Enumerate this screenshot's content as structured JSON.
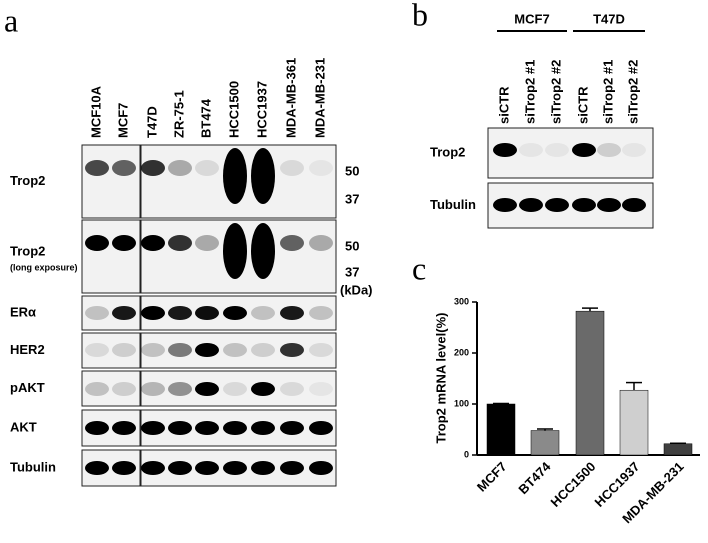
{
  "panel_a": {
    "label": "a",
    "lanes": [
      "MCF10A",
      "MCF7",
      "T47D",
      "ZR-75-1",
      "BT474",
      "HCC1500",
      "HCC1937",
      "MDA-MB-361",
      "MDA-MB-231"
    ],
    "rows": [
      "Trop2",
      "Trop2",
      "ERα",
      "HER2",
      "pAKT",
      "AKT",
      "Tubulin"
    ],
    "row_note": "(long exposure)",
    "markers": [
      "50",
      "37",
      "50",
      "37"
    ],
    "unit": "(kDa)"
  },
  "panel_b": {
    "label": "b",
    "groups": [
      "MCF7",
      "T47D"
    ],
    "lanes": [
      "siCTR",
      "siTrop2 #1",
      "siTrop2 #2",
      "siCTR",
      "siTrop2 #1",
      "siTrop2 #2"
    ],
    "rows": [
      "Trop2",
      "Tubulin"
    ]
  },
  "panel_c": {
    "label": "c"
  },
  "chart_data": {
    "type": "bar",
    "y_label": "Trop2 mRNA level(%)",
    "categories": [
      "MCF7",
      "BT474",
      "HCC1500",
      "HCC1937",
      "MDA-MB-231"
    ],
    "values": [
      100,
      48,
      282,
      127,
      22
    ],
    "errors": [
      1,
      3,
      6,
      15,
      1
    ],
    "colors": [
      "#000000",
      "#8a8a8a",
      "#6a6a6a",
      "#cfcfcf",
      "#404040"
    ],
    "ylim": [
      0,
      300
    ],
    "yticks": [
      0,
      100,
      200,
      300
    ]
  }
}
